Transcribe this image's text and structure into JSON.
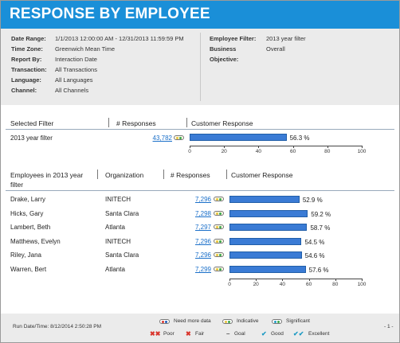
{
  "title": "RESPONSE BY EMPLOYEE",
  "params_left": [
    {
      "label": "Date Range:",
      "value": "1/1/2013 12:00:00 AM - 12/31/2013 11:59:59 PM"
    },
    {
      "label": "Time Zone:",
      "value": "Greenwich Mean Time"
    },
    {
      "label": "Report By:",
      "value": "Interaction Date"
    },
    {
      "label": "Transaction:",
      "value": "All Transactions"
    },
    {
      "label": "Language:",
      "value": "All Languages"
    },
    {
      "label": "Channel:",
      "value": "All Channels"
    }
  ],
  "params_right": [
    {
      "label": "Employee Filter:",
      "value": "2013 year filter"
    },
    {
      "label": "Business",
      "value": "Overall"
    },
    {
      "label": "Objective:",
      "value": ""
    }
  ],
  "filter_table": {
    "headers": {
      "filter": "Selected Filter",
      "responses": "# Responses",
      "customer": "Customer Response"
    },
    "row": {
      "name": "2013 year filter",
      "responses": "43,782",
      "pct_label": "56.3 %"
    }
  },
  "employee_table": {
    "headers": {
      "employees_line1": "Employees in 2013 year",
      "employees_line2": "filter",
      "organization": "Organization",
      "responses": "# Responses",
      "customer": "Customer Response"
    },
    "rows": [
      {
        "name": "Drake, Larry",
        "org": "INITECH",
        "responses": "7,296",
        "pct_label": "52.9 %"
      },
      {
        "name": "Hicks, Gary",
        "org": "Santa Clara",
        "responses": "7,298",
        "pct_label": "59.2 %"
      },
      {
        "name": "Lambert, Beth",
        "org": "Atlanta",
        "responses": "7,297",
        "pct_label": "58.7 %"
      },
      {
        "name": "Matthews, Evelyn",
        "org": "INITECH",
        "responses": "7,296",
        "pct_label": "54.5 %"
      },
      {
        "name": "Riley, Jana",
        "org": "Santa Clara",
        "responses": "7,296",
        "pct_label": "54.6 %"
      },
      {
        "name": "Warren, Bert",
        "org": "Atlanta",
        "responses": "7,299",
        "pct_label": "57.6 %"
      }
    ]
  },
  "chart_data": {
    "type": "bar",
    "xlim": [
      0,
      100
    ],
    "ticks": [
      "0",
      "20",
      "40",
      "60",
      "80",
      "100"
    ],
    "filter_value": 56.3,
    "employee_values": [
      52.9,
      59.2,
      58.7,
      54.5,
      54.6,
      57.6
    ]
  },
  "footer": {
    "run_date": "Run Date/Time: 8/12/2014 2:50:28 PM",
    "page": "- 1 -",
    "legend_need": "Need more data",
    "legend_indicative": "Indicative",
    "legend_significant": "Significant",
    "poor": "Poor",
    "fair": "Fair",
    "goal": "Goal",
    "good": "Good",
    "excellent": "Excellent"
  },
  "colors": {
    "header_blue": "#1a8fd8",
    "bar_blue": "#3a7bd5",
    "link_blue": "#1a6fc9",
    "poor_red": "#d9352c",
    "good_teal": "#1f9bc4",
    "indicator_yellow": "#e8c23a",
    "indicator_green": "#3aa84a"
  }
}
